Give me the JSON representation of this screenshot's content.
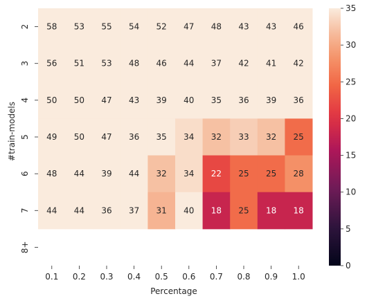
{
  "chart_data": {
    "type": "heatmap",
    "title": "",
    "xlabel": "Percentage",
    "ylabel": "#train-models",
    "x_categories": [
      "0.1",
      "0.2",
      "0.3",
      "0.4",
      "0.5",
      "0.6",
      "0.7",
      "0.8",
      "0.9",
      "1.0"
    ],
    "y_categories": [
      "2",
      "3",
      "4",
      "5",
      "6",
      "7",
      "8+"
    ],
    "values": [
      [
        58,
        53,
        55,
        54,
        52,
        47,
        48,
        43,
        43,
        46
      ],
      [
        56,
        51,
        53,
        48,
        46,
        44,
        37,
        42,
        41,
        42
      ],
      [
        50,
        50,
        47,
        43,
        39,
        40,
        35,
        36,
        39,
        36
      ],
      [
        49,
        50,
        47,
        36,
        35,
        34,
        32,
        33,
        32,
        25
      ],
      [
        48,
        44,
        39,
        44,
        32,
        34,
        22,
        25,
        25,
        28
      ],
      [
        44,
        44,
        36,
        37,
        31,
        40,
        18,
        25,
        18,
        18
      ],
      [
        null,
        null,
        null,
        null,
        null,
        null,
        null,
        null,
        null,
        null
      ]
    ],
    "colorbar": {
      "vmin": 0,
      "vmax": 35,
      "ticks": [
        0,
        5,
        10,
        15,
        20,
        25,
        30,
        35
      ],
      "colormap": "rocket"
    }
  }
}
